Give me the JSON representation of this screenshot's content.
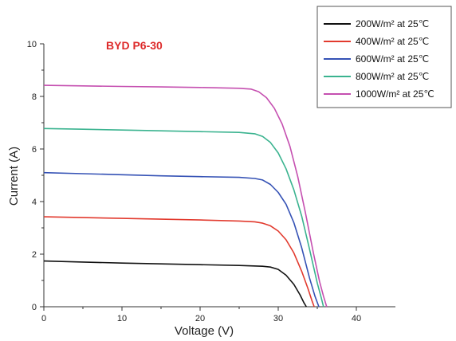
{
  "chart_data": {
    "type": "line",
    "title": "BYD P6-30",
    "xlabel": "Voltage (V)",
    "ylabel": "Current (A)",
    "xlim": [
      0,
      45
    ],
    "ylim": [
      0,
      10
    ],
    "xticks": [
      0,
      10,
      20,
      30,
      40
    ],
    "yticks": [
      0,
      2,
      4,
      6,
      8,
      10
    ],
    "grid": false,
    "legend_position": "top-right",
    "series": [
      {
        "name": "200W/m² at 25℃",
        "color": "#111111",
        "x": [
          0,
          5,
          10,
          15,
          20,
          25,
          28,
          29,
          30,
          31,
          32,
          32.8,
          33.3,
          33.6
        ],
        "y": [
          1.74,
          1.7,
          1.66,
          1.63,
          1.6,
          1.57,
          1.54,
          1.51,
          1.42,
          1.2,
          0.85,
          0.45,
          0.15,
          0
        ]
      },
      {
        "name": "400W/m² at 25℃",
        "color": "#e23a2e",
        "x": [
          0,
          5,
          10,
          15,
          20,
          25,
          27,
          28,
          29,
          30,
          31,
          32,
          33,
          33.8,
          34.3,
          34.6
        ],
        "y": [
          3.42,
          3.39,
          3.36,
          3.33,
          3.3,
          3.26,
          3.23,
          3.18,
          3.08,
          2.88,
          2.55,
          2.05,
          1.35,
          0.7,
          0.25,
          0
        ]
      },
      {
        "name": "600W/m² at 25℃",
        "color": "#3552b5",
        "x": [
          0,
          5,
          10,
          15,
          20,
          25,
          27,
          28,
          29,
          30,
          31,
          32,
          33,
          34,
          34.7,
          35.2
        ],
        "y": [
          5.1,
          5.06,
          5.02,
          4.98,
          4.95,
          4.92,
          4.88,
          4.82,
          4.65,
          4.35,
          3.9,
          3.2,
          2.25,
          1.1,
          0.4,
          0
        ]
      },
      {
        "name": "800W/m² at 25℃",
        "color": "#3ab38f",
        "x": [
          0,
          5,
          10,
          15,
          20,
          25,
          27,
          28,
          29,
          30,
          31,
          32,
          33,
          34,
          35,
          35.5,
          35.8
        ],
        "y": [
          6.78,
          6.75,
          6.72,
          6.69,
          6.66,
          6.63,
          6.58,
          6.48,
          6.25,
          5.85,
          5.25,
          4.45,
          3.45,
          2.2,
          0.9,
          0.35,
          0
        ]
      },
      {
        "name": "1000W/m² at 25℃",
        "color": "#c54fb0",
        "x": [
          0,
          5,
          10,
          15,
          20,
          25,
          26.5,
          27.5,
          28.5,
          29.5,
          30.5,
          31.5,
          32.5,
          33.5,
          34.5,
          35.3,
          35.8,
          36.2
        ],
        "y": [
          8.42,
          8.4,
          8.38,
          8.36,
          8.34,
          8.31,
          8.28,
          8.18,
          7.95,
          7.55,
          6.95,
          6.1,
          4.95,
          3.55,
          2.05,
          0.95,
          0.4,
          0
        ]
      }
    ]
  }
}
